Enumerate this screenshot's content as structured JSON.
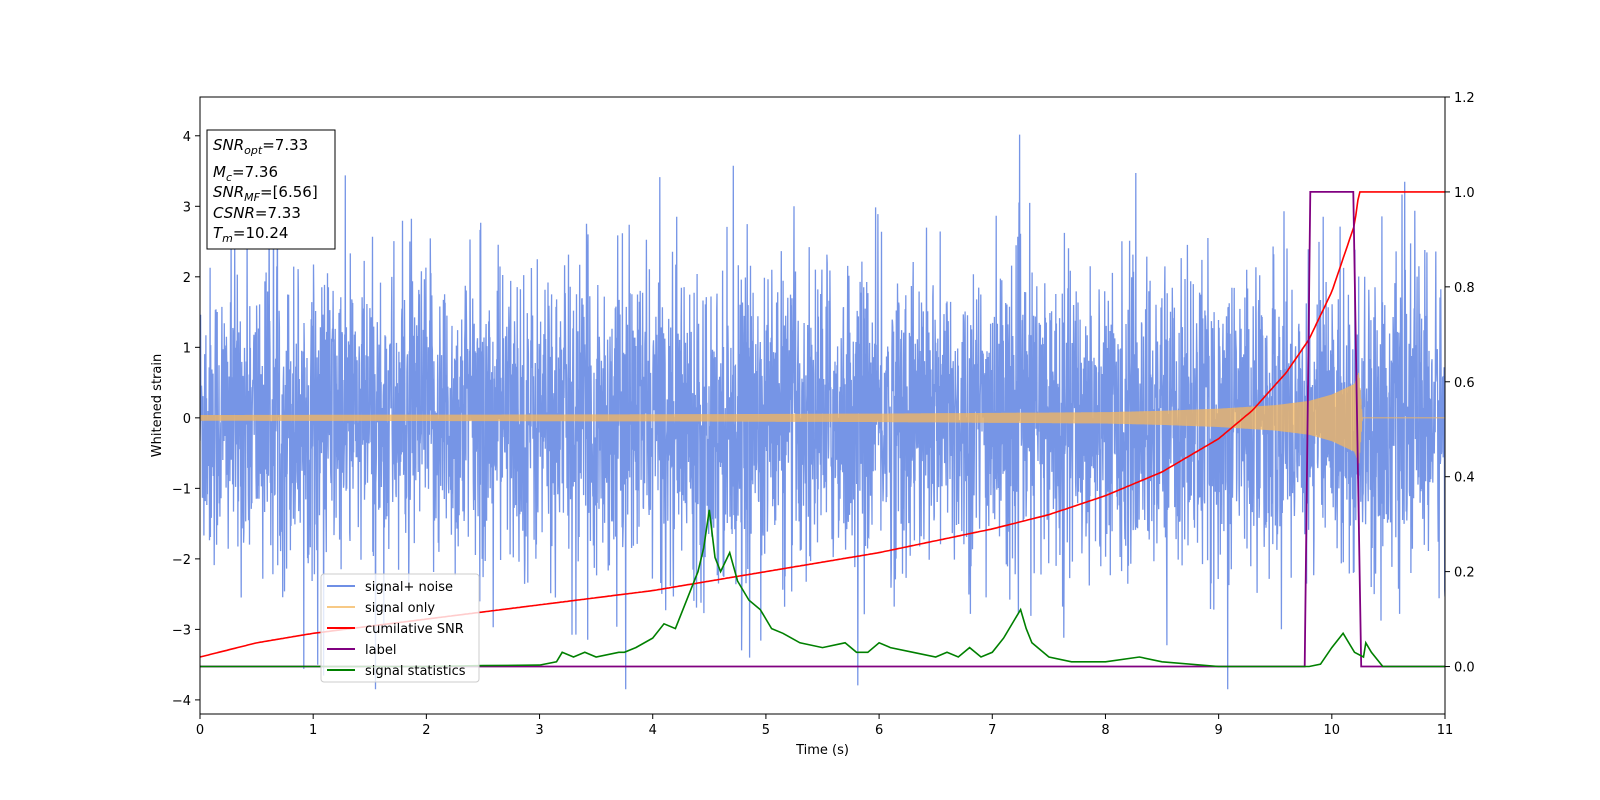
{
  "chart_data": {
    "type": "line",
    "title": "",
    "xlabel": "Time (s)",
    "ylabel": "Whitened strain",
    "xlim": [
      0,
      11
    ],
    "ylim": [
      -4.2,
      4.55
    ],
    "y2lim": [
      -0.1,
      1.2
    ],
    "x_ticks": [
      0,
      1,
      2,
      3,
      4,
      5,
      6,
      7,
      8,
      9,
      10,
      11
    ],
    "y_ticks": [
      -4,
      -3,
      -2,
      -1,
      0,
      1,
      2,
      3,
      4
    ],
    "y2_ticks": [
      "0.0",
      "0.2",
      "0.4",
      "0.6",
      "0.8",
      "1.0",
      "1.2"
    ],
    "grid": false,
    "legend_position": "bottom-left",
    "info_box": {
      "lines": [
        {
          "sym": "SNR",
          "sub": "opt",
          "val": "=7.33"
        },
        {
          "sym": "M",
          "sub": "c",
          "val": "=7.36"
        },
        {
          "sym": "SNR",
          "sub": "MF",
          "val": "=[6.56]"
        },
        {
          "sym": "CSNR",
          "sub": "",
          "val": "=7.33"
        },
        {
          "sym": "T",
          "sub": "m",
          "val": "=10.24"
        }
      ]
    },
    "series": [
      {
        "name": "signal+ noise",
        "color": "#6f8fe5",
        "axis": "left",
        "description_values": {
          "noise_band_core": [
            -1.3,
            1.3
          ],
          "max_spikes": [
            4.15,
            -3.8
          ]
        }
      },
      {
        "name": "signal only",
        "color": "#f5b75d",
        "axis": "left",
        "envelope": {
          "x": [
            0,
            2,
            4,
            6,
            7,
            8,
            8.5,
            9,
            9.5,
            9.8,
            10,
            10.2,
            10.24,
            10.27,
            11
          ],
          "amp": [
            0.04,
            0.045,
            0.05,
            0.06,
            0.07,
            0.08,
            0.1,
            0.13,
            0.18,
            0.24,
            0.33,
            0.48,
            0.65,
            0.0,
            0.0
          ]
        }
      },
      {
        "name": "cumilative SNR",
        "color": "#ff0000",
        "axis": "right",
        "x": [
          0,
          0.5,
          1,
          2,
          3,
          4,
          5,
          6,
          7,
          7.5,
          8,
          8.5,
          9,
          9.3,
          9.6,
          9.8,
          10,
          10.1,
          10.2,
          10.24,
          10.3,
          11
        ],
        "y": [
          0.02,
          0.05,
          0.07,
          0.1,
          0.13,
          0.16,
          0.2,
          0.24,
          0.29,
          0.32,
          0.36,
          0.41,
          0.48,
          0.54,
          0.62,
          0.69,
          0.79,
          0.86,
          0.93,
          1.0,
          1.0,
          1.0
        ]
      },
      {
        "name": "label",
        "color": "#800080",
        "axis": "right",
        "x": [
          0,
          9.76,
          9.81,
          10.19,
          10.26,
          11
        ],
        "y": [
          0,
          0,
          1,
          1,
          0,
          0
        ]
      },
      {
        "name": "signal statistics",
        "color": "#008000",
        "axis": "right",
        "x": [
          0,
          1,
          2,
          2.5,
          3,
          3.15,
          3.2,
          3.3,
          3.4,
          3.5,
          3.7,
          3.75,
          3.85,
          4.0,
          4.1,
          4.2,
          4.3,
          4.35,
          4.4,
          4.45,
          4.5,
          4.55,
          4.6,
          4.68,
          4.75,
          4.85,
          4.95,
          5.05,
          5.15,
          5.3,
          5.5,
          5.7,
          5.8,
          5.9,
          6.0,
          6.1,
          6.3,
          6.5,
          6.6,
          6.7,
          6.8,
          6.9,
          7.0,
          7.1,
          7.2,
          7.25,
          7.3,
          7.35,
          7.5,
          7.7,
          8.0,
          8.3,
          8.5,
          9.0,
          9.5,
          9.8,
          9.9,
          10.0,
          10.1,
          10.2,
          10.28,
          10.3,
          10.35,
          10.45,
          11
        ],
        "y": [
          0.0,
          0.0,
          0.0,
          0.002,
          0.003,
          0.01,
          0.03,
          0.02,
          0.03,
          0.02,
          0.03,
          0.03,
          0.04,
          0.06,
          0.09,
          0.08,
          0.14,
          0.17,
          0.2,
          0.25,
          0.33,
          0.23,
          0.2,
          0.24,
          0.18,
          0.14,
          0.12,
          0.08,
          0.07,
          0.05,
          0.04,
          0.05,
          0.03,
          0.03,
          0.05,
          0.04,
          0.03,
          0.02,
          0.03,
          0.02,
          0.04,
          0.02,
          0.03,
          0.06,
          0.1,
          0.12,
          0.08,
          0.05,
          0.02,
          0.01,
          0.01,
          0.02,
          0.01,
          0.0,
          0.0,
          0.0,
          0.005,
          0.04,
          0.07,
          0.03,
          0.02,
          0.05,
          0.03,
          0.0,
          0.0
        ]
      }
    ]
  }
}
